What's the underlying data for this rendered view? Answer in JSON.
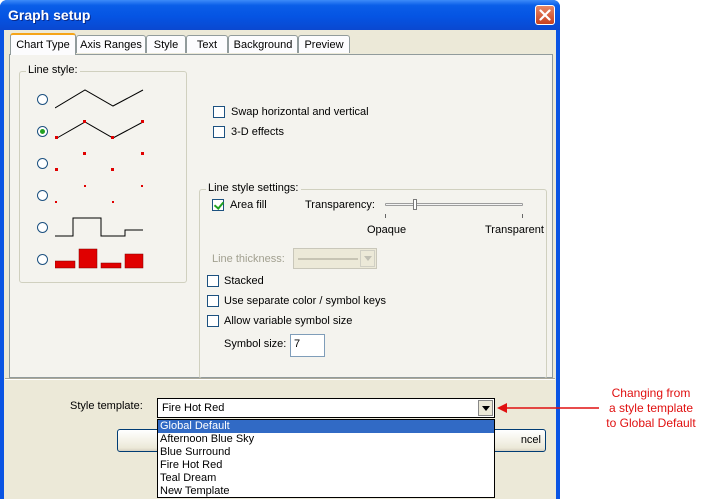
{
  "window": {
    "title": "Graph setup"
  },
  "tabs": [
    {
      "label": "Chart Type",
      "active": true
    },
    {
      "label": "Axis Ranges"
    },
    {
      "label": "Style"
    },
    {
      "label": "Text"
    },
    {
      "label": "Background"
    },
    {
      "label": "Preview"
    }
  ],
  "line_style": {
    "legend": "Line style:",
    "options": [
      "line",
      "line-with-markers",
      "markers-large",
      "markers-small",
      "step",
      "bars"
    ],
    "selected_index": 1
  },
  "checkboxes": {
    "swap": {
      "label": "Swap horizontal and vertical",
      "checked": false
    },
    "effects3d": {
      "label": "3-D effects",
      "checked": false
    }
  },
  "line_settings": {
    "legend": "Line style settings:",
    "area_fill": {
      "label": "Area fill",
      "checked": true
    },
    "transparency": {
      "label": "Transparency:",
      "min_label": "Opaque",
      "max_label": "Transparent",
      "value": 0.2
    },
    "line_thickness": {
      "label": "Line thickness:",
      "disabled": true
    },
    "stacked": {
      "label": "Stacked",
      "checked": false
    },
    "separate_keys": {
      "label": "Use separate color / symbol keys",
      "checked": false
    },
    "variable_symbol": {
      "label": "Allow variable symbol size",
      "checked": false
    },
    "symbol_size": {
      "label": "Symbol size:",
      "value": "7"
    }
  },
  "style_template": {
    "label": "Style template:",
    "value": "Fire Hot Red",
    "options": [
      "Global Default",
      "Afternoon Blue Sky",
      "Blue Surround",
      "Fire Hot Red",
      "Teal Dream",
      "New Template"
    ],
    "highlighted_index": 0
  },
  "buttons": {
    "cancel_partial": "ncel"
  },
  "annotation": {
    "line1": "Changing from",
    "line2": "a style template",
    "line3": "to Global Default"
  },
  "colors": {
    "titlebar": "#0a54e3",
    "marker": "#e00000",
    "annotation": "#e01010",
    "highlight": "#316ac5"
  }
}
